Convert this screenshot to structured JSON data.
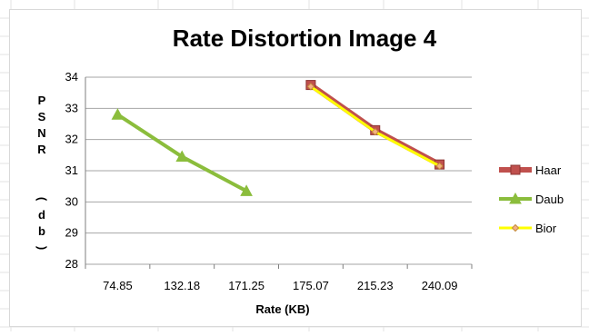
{
  "chart_data": {
    "type": "line",
    "title": "Rate Distortion Image 4",
    "xlabel": "Rate (KB)",
    "ylabel": "PSNR (db)",
    "categories": [
      "74.85",
      "132.18",
      "171.25",
      "175.07",
      "215.23",
      "240.09"
    ],
    "ylim": [
      28,
      34
    ],
    "yticks": [
      28,
      29,
      30,
      31,
      32,
      33,
      34
    ],
    "grid": true,
    "legend_position": "right",
    "series": [
      {
        "name": "Haar",
        "color": "#c0504d",
        "marker": "square",
        "values": [
          null,
          null,
          null,
          33.75,
          32.3,
          31.2
        ]
      },
      {
        "name": "Daub",
        "color": "#8bbd3c",
        "marker": "triangle",
        "values": [
          32.8,
          31.45,
          30.35,
          null,
          null,
          null
        ]
      },
      {
        "name": "Bior",
        "color": "#ffff00",
        "marker": "diamond",
        "values": [
          null,
          null,
          null,
          33.7,
          32.25,
          31.15
        ]
      }
    ]
  }
}
